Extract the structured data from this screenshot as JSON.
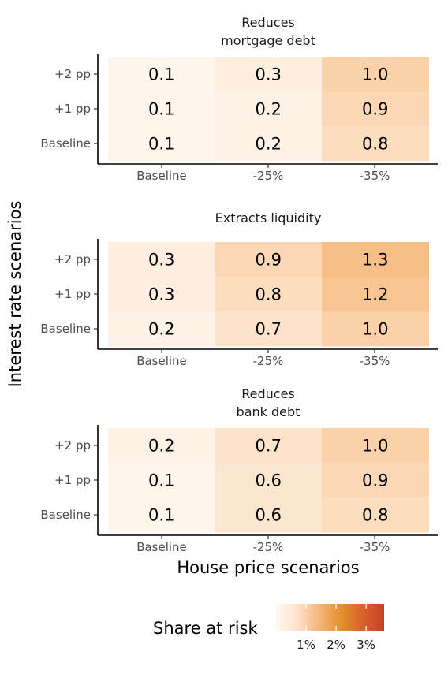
{
  "chart_data": [
    {
      "type": "heatmap",
      "title": "Reduces\nmortgage debt",
      "x_categories": [
        "Baseline",
        "-25%",
        "-35%"
      ],
      "y_categories": [
        "+2 pp",
        "+1 pp",
        "Baseline"
      ],
      "values": [
        [
          0.1,
          0.3,
          1.0
        ],
        [
          0.1,
          0.2,
          0.9
        ],
        [
          0.1,
          0.2,
          0.8
        ]
      ],
      "value_labels": [
        [
          "0.1",
          "0.3",
          "1.0"
        ],
        [
          "0.1",
          "0.2",
          "0.9"
        ],
        [
          "0.1",
          "0.2",
          "0.8"
        ]
      ]
    },
    {
      "type": "heatmap",
      "title": "Extracts liquidity",
      "x_categories": [
        "Baseline",
        "-25%",
        "-35%"
      ],
      "y_categories": [
        "+2 pp",
        "+1 pp",
        "Baseline"
      ],
      "values": [
        [
          0.3,
          0.9,
          1.3
        ],
        [
          0.3,
          0.8,
          1.2
        ],
        [
          0.2,
          0.7,
          1.0
        ]
      ],
      "value_labels": [
        [
          "0.3",
          "0.9",
          "1.3"
        ],
        [
          "0.3",
          "0.8",
          "1.2"
        ],
        [
          "0.2",
          "0.7",
          "1.0"
        ]
      ]
    },
    {
      "type": "heatmap",
      "title": "Reduces\nbank debt",
      "x_categories": [
        "Baseline",
        "-25%",
        "-35%"
      ],
      "y_categories": [
        "+2 pp",
        "+1 pp",
        "Baseline"
      ],
      "values": [
        [
          0.2,
          0.7,
          1.0
        ],
        [
          0.1,
          0.6,
          0.9
        ],
        [
          0.1,
          0.6,
          0.8
        ]
      ],
      "value_labels": [
        [
          "0.2",
          "0.7",
          "1.0"
        ],
        [
          "0.1",
          "0.6",
          "0.9"
        ],
        [
          "0.1",
          "0.6",
          "0.8"
        ]
      ]
    }
  ],
  "axes": {
    "xlabel": "House price scenarios",
    "ylabel": "Interest rate scenarios"
  },
  "legend": {
    "title": "Share at risk",
    "ticks": [
      {
        "label": "1%",
        "value": 1
      },
      {
        "label": "2%",
        "value": 2
      },
      {
        "label": "3%",
        "value": 3
      }
    ],
    "range": [
      0,
      3.6
    ],
    "colors": [
      "#fff8f1",
      "#fde2c8",
      "#f6b679",
      "#e3902f",
      "#d8632a",
      "#c8402a"
    ]
  }
}
